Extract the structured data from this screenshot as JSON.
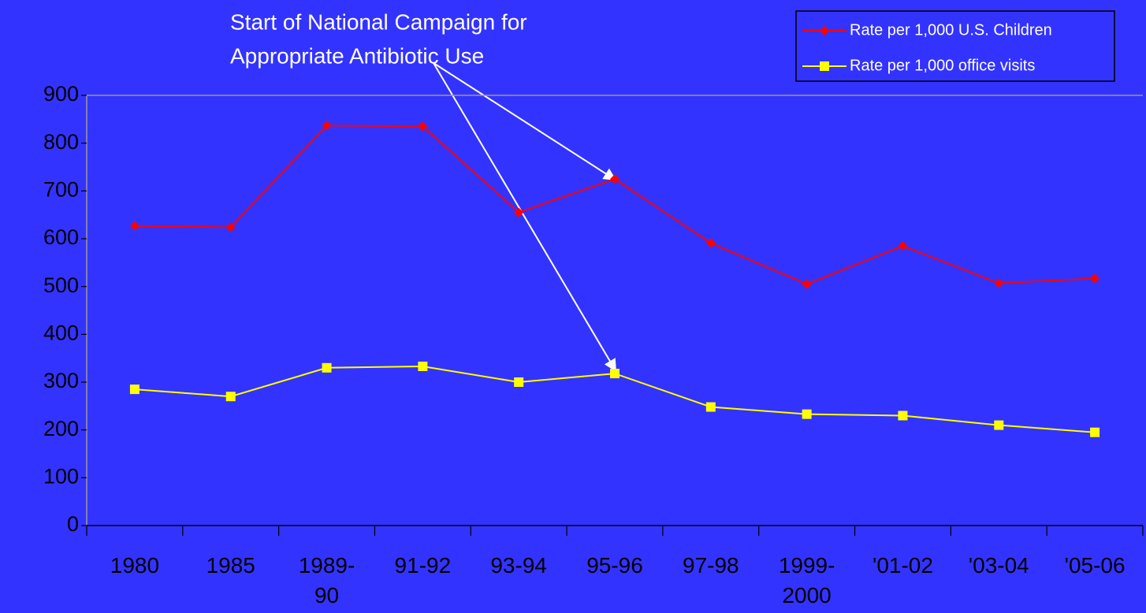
{
  "chart_data": {
    "type": "line",
    "annotation": [
      "Start of National Campaign for",
      "Appropriate Antibiotic Use"
    ],
    "categories": [
      "1980",
      "1985",
      "1989-\n90",
      "91-92",
      "93-94",
      "95-96",
      "97-98",
      "1999-\n2000",
      "'01-02",
      "'03-04",
      "'05-06"
    ],
    "series": [
      {
        "name": "Rate per 1,000 U.S. Children",
        "color": "#ff0000",
        "marker": "diamond",
        "values": [
          627,
          624,
          837,
          835,
          655,
          725,
          591,
          505,
          585,
          507,
          517
        ]
      },
      {
        "name": "Rate per 1,000 office visits",
        "color": "#ffff00",
        "marker": "square",
        "values": [
          285,
          270,
          330,
          333,
          300,
          318,
          248,
          233,
          230,
          210,
          195
        ]
      }
    ],
    "ylim": [
      0,
      900
    ],
    "yticks": [
      0,
      100,
      200,
      300,
      400,
      500,
      600,
      700,
      800,
      900
    ],
    "legend": "top-right"
  }
}
